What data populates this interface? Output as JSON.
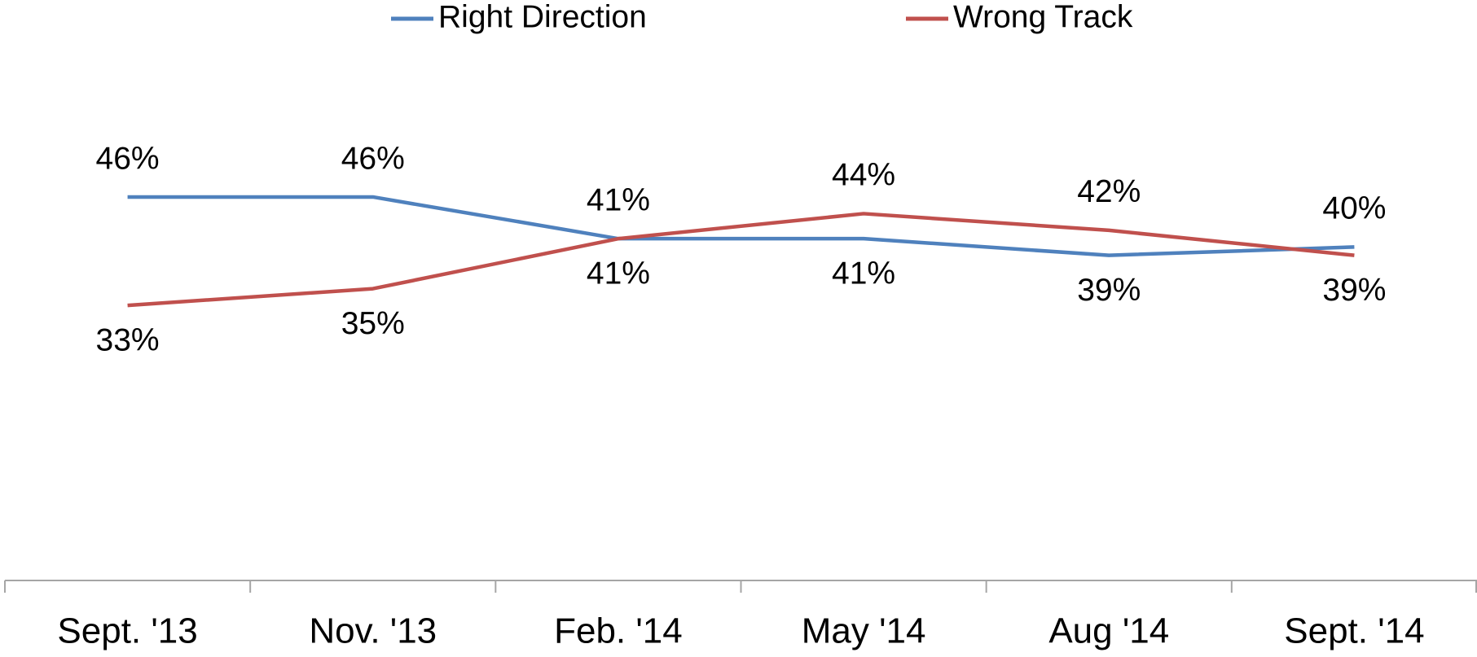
{
  "chart_data": {
    "type": "line",
    "categories": [
      "Sept. '13",
      "Nov. '13",
      "Feb. '14",
      "May '14",
      "Aug '14",
      "Sept. '14"
    ],
    "series": [
      {
        "name": "Right Direction",
        "color": "#4f81bd",
        "values": [
          46,
          46,
          41,
          41,
          39,
          40
        ],
        "value_labels": [
          "46%",
          "46%",
          "41%",
          "41%",
          "39%",
          "40%"
        ]
      },
      {
        "name": "Wrong Track",
        "color": "#c0504d",
        "values": [
          33,
          35,
          41,
          44,
          42,
          39
        ],
        "value_labels": [
          "33%",
          "35%",
          "41%",
          "44%",
          "42%",
          "39%"
        ]
      }
    ],
    "ylim": [
      0,
      50
    ]
  }
}
